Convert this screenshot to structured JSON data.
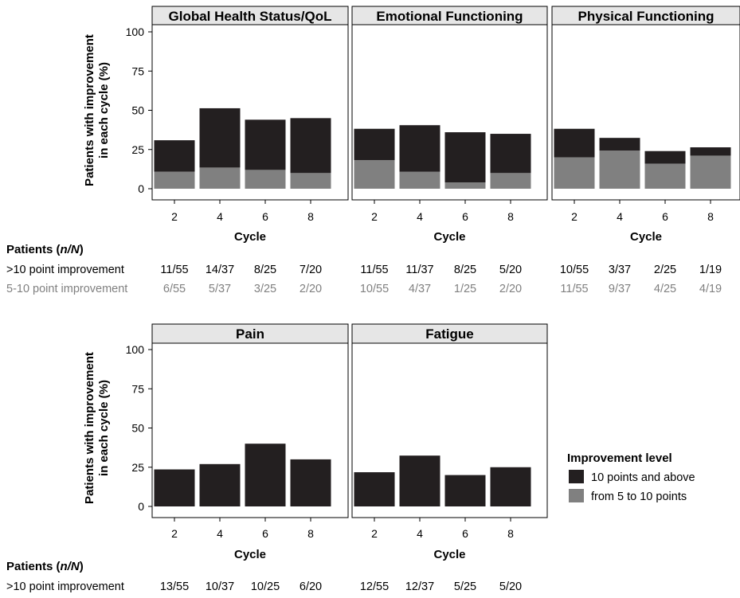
{
  "colors": {
    "above10": "#231f20",
    "from5to10": "#808080",
    "strip_fill": "#e6e6e6",
    "row_gray_text": "#808080"
  },
  "chart_data": [
    {
      "type": "bar",
      "stacked": true,
      "title": "Global Health Status/QoL",
      "xlabel": "Cycle",
      "ylabel": "Patients with improvement in each cycle (%)",
      "categories": [
        "2",
        "4",
        "6",
        "8"
      ],
      "ylim": [
        0,
        100
      ],
      "yticks": [
        0,
        25,
        50,
        75,
        100
      ],
      "series": [
        {
          "name": "from 5 to 10 points",
          "values": [
            10.9,
            13.5,
            12,
            10
          ]
        },
        {
          "name": "10 points and above",
          "values": [
            20,
            37.8,
            32,
            35
          ]
        }
      ],
      "table": {
        "above10": [
          "11/55",
          "14/37",
          "8/25",
          "7/20"
        ],
        "from5to10": [
          "6/55",
          "5/37",
          "3/25",
          "2/20"
        ]
      }
    },
    {
      "type": "bar",
      "stacked": true,
      "title": "Emotional Functioning",
      "xlabel": "Cycle",
      "categories": [
        "2",
        "4",
        "6",
        "8"
      ],
      "ylim": [
        0,
        100
      ],
      "series": [
        {
          "name": "from 5 to 10 points",
          "values": [
            18.2,
            10.8,
            4,
            10
          ]
        },
        {
          "name": "10 points and above",
          "values": [
            20,
            29.7,
            32,
            25
          ]
        }
      ],
      "table": {
        "above10": [
          "11/55",
          "11/37",
          "8/25",
          "5/20"
        ],
        "from5to10": [
          "10/55",
          "4/37",
          "1/25",
          "2/20"
        ]
      }
    },
    {
      "type": "bar",
      "stacked": true,
      "title": "Physical Functioning",
      "xlabel": "Cycle",
      "categories": [
        "2",
        "4",
        "6",
        "8"
      ],
      "ylim": [
        0,
        100
      ],
      "series": [
        {
          "name": "from 5 to 10 points",
          "values": [
            20,
            24.3,
            16,
            21.1
          ]
        },
        {
          "name": "10 points and above",
          "values": [
            18.2,
            8.1,
            8,
            5.3
          ]
        }
      ],
      "table": {
        "above10": [
          "10/55",
          "3/37",
          "2/25",
          "1/19"
        ],
        "from5to10": [
          "11/55",
          "9/37",
          "4/25",
          "4/19"
        ]
      }
    },
    {
      "type": "bar",
      "stacked": true,
      "title": "Pain",
      "xlabel": "Cycle",
      "ylabel": "Patients with improvement in each cycle (%)",
      "categories": [
        "2",
        "4",
        "6",
        "8"
      ],
      "ylim": [
        0,
        100
      ],
      "yticks": [
        0,
        25,
        50,
        75,
        100
      ],
      "series": [
        {
          "name": "10 points and above",
          "values": [
            23.6,
            27,
            40,
            30
          ]
        }
      ],
      "table": {
        "above10": [
          "13/55",
          "10/37",
          "10/25",
          "6/20"
        ]
      }
    },
    {
      "type": "bar",
      "stacked": true,
      "title": "Fatigue",
      "xlabel": "Cycle",
      "categories": [
        "2",
        "4",
        "6",
        "8"
      ],
      "ylim": [
        0,
        100
      ],
      "series": [
        {
          "name": "10 points and above",
          "values": [
            21.8,
            32.4,
            20,
            25
          ]
        }
      ],
      "table": {
        "above10": [
          "12/55",
          "12/37",
          "5/25",
          "5/20"
        ]
      }
    }
  ],
  "table_labels": {
    "patients_prefix": "Patients (",
    "patients_italic": "n/N",
    "patients_suffix": ")",
    "row_above10": ">10 point improvement",
    "row_from5to10": "5-10 point improvement"
  },
  "legend": {
    "title": "Improvement level",
    "items": [
      {
        "label": "10 points and above",
        "color": "#231f20"
      },
      {
        "label": "from 5 to 10 points",
        "color": "#808080"
      }
    ]
  }
}
